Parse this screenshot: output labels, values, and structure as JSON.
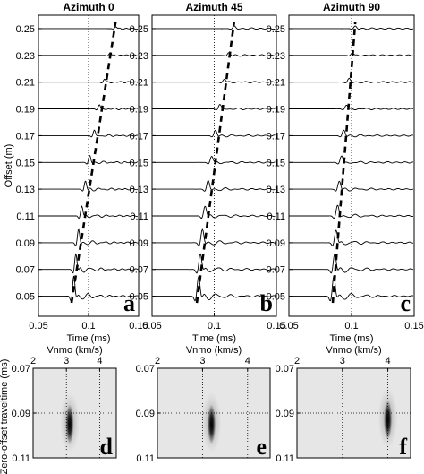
{
  "chart_data": {
    "type": "seismic_gathers_and_semblance",
    "gathers": [
      {
        "title": "Azimuth  0",
        "panel_label": "a",
        "pick_intercept_ms": 0.083,
        "pick_end_time_ms": 0.127
      },
      {
        "title": "Azimuth 45",
        "panel_label": "b",
        "pick_intercept_ms": 0.086,
        "pick_end_time_ms": 0.116
      },
      {
        "title": "Azimuth 90",
        "panel_label": "c",
        "pick_intercept_ms": 0.085,
        "pick_end_time_ms": 0.103
      }
    ],
    "gather_axes": {
      "xlabel": "Time  (ms)",
      "ylabel": "Offset (m)",
      "xlim": [
        0.05,
        0.15
      ],
      "x_ticks": [
        "0.05",
        "0.1",
        "0.15"
      ],
      "x_tick_values": [
        0.05,
        0.1,
        0.15
      ],
      "y_ticks": [
        "0.05",
        "0.07",
        "0.09",
        "0.11",
        "0.13",
        "0.15",
        "0.17",
        "0.19",
        "0.21",
        "0.23",
        "0.25"
      ],
      "y_tick_values": [
        0.05,
        0.07,
        0.09,
        0.11,
        0.13,
        0.15,
        0.17,
        0.19,
        0.21,
        0.23,
        0.25
      ],
      "dotted_reference_time_ms": 0.1
    },
    "semblance": [
      {
        "panel_label": "d",
        "peak_vnmo_kms": 3.1,
        "peak_t0_ms": 0.095
      },
      {
        "panel_label": "e",
        "peak_vnmo_kms": 3.2,
        "peak_t0_ms": 0.095
      },
      {
        "panel_label": "f",
        "peak_vnmo_kms": 4.0,
        "peak_t0_ms": 0.093
      }
    ],
    "semblance_axes": {
      "xlabel": "Vnmo  (km/s)",
      "ylabel": "Zero-offset traveltime  (ms)",
      "xlim": [
        2,
        4.5
      ],
      "x_ticks": [
        "2",
        "3",
        "4"
      ],
      "x_tick_values": [
        2,
        3,
        4
      ],
      "ylim": [
        0.07,
        0.11
      ],
      "y_ticks": [
        "0.07",
        "0.09",
        "0.11"
      ],
      "y_tick_values": [
        0.07,
        0.09,
        0.11
      ],
      "grid": "dotted"
    }
  }
}
